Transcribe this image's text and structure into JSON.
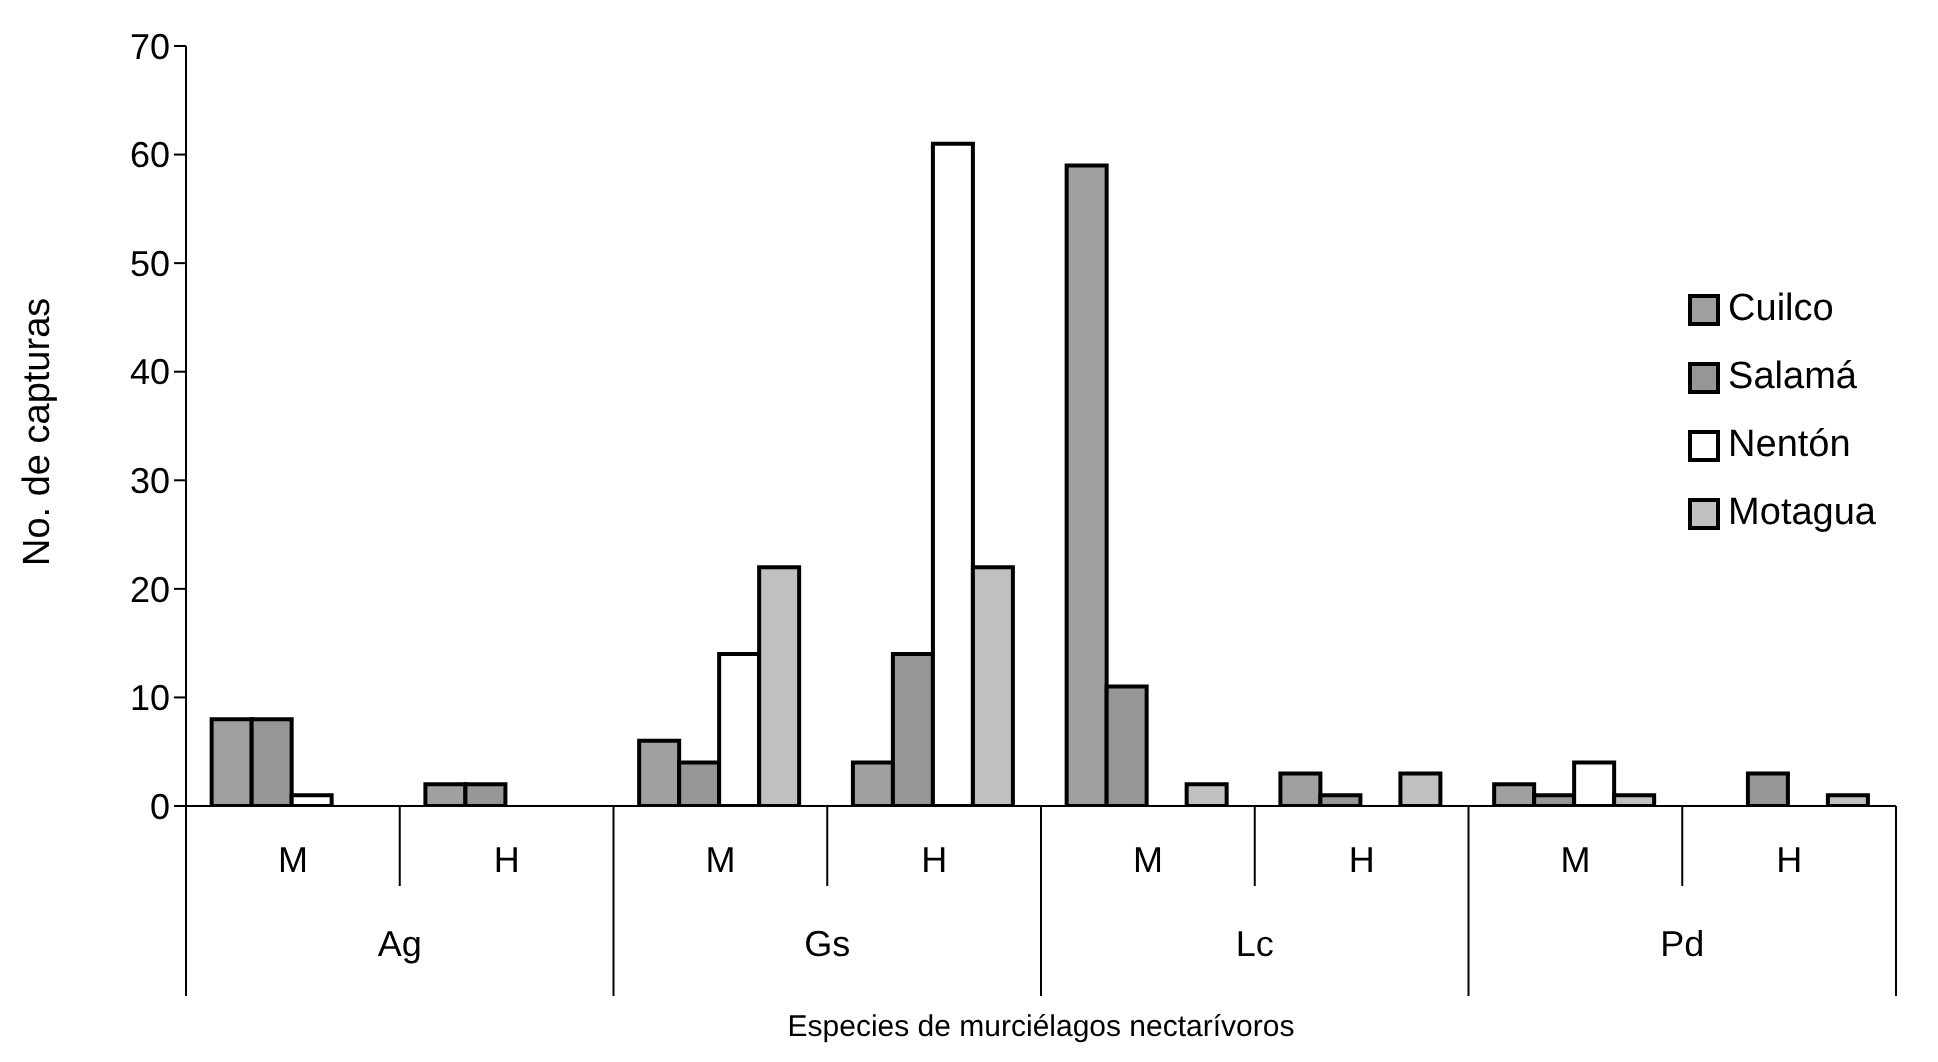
{
  "chart_data": {
    "type": "bar",
    "xlabel": "Especies de murciélagos nectarívoros",
    "ylabel": "No. de capturas",
    "categories": [
      "M",
      "H",
      "M",
      "H",
      "M",
      "H",
      "M",
      "H"
    ],
    "annotations": [
      "Ag",
      "Gs",
      "Lc",
      "Pd"
    ],
    "series": [
      {
        "name": "Cuilco",
        "color": "#a0a0a0",
        "values": [
          8,
          2,
          6,
          4,
          59,
          3,
          2,
          0
        ]
      },
      {
        "name": "Salamá",
        "color": "#969696",
        "values": [
          8,
          2,
          4,
          14,
          11,
          1,
          1,
          3
        ]
      },
      {
        "name": "Nentón",
        "color": "#ffffff",
        "values": [
          1,
          0,
          14,
          61,
          0,
          0,
          4,
          0
        ]
      },
      {
        "name": "Motagua",
        "color": "#c0c0c0",
        "values": [
          0,
          0,
          22,
          22,
          2,
          3,
          1,
          1
        ]
      }
    ],
    "ylim": [
      0,
      70
    ],
    "yticks": [
      0,
      10,
      20,
      30,
      40,
      50,
      60,
      70
    ],
    "grid": false,
    "legend": "right"
  }
}
